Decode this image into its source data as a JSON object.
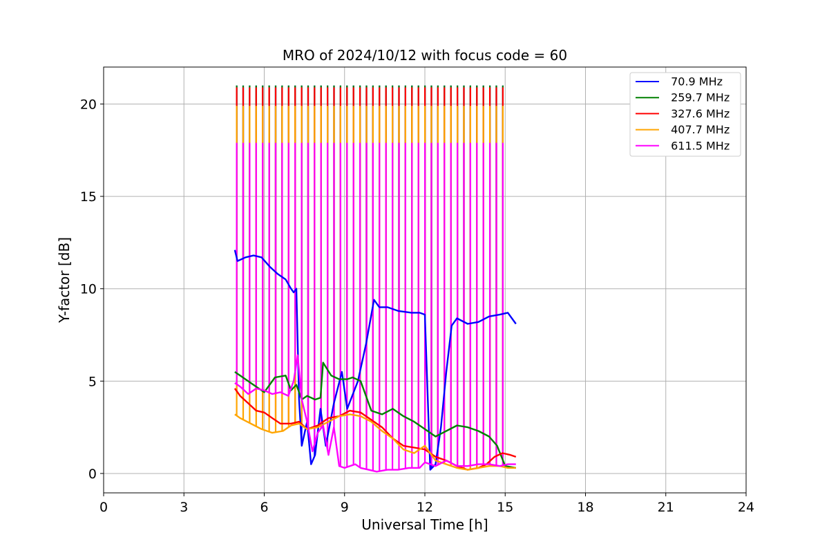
{
  "chart_data": {
    "type": "line",
    "title": "MRO of 2024/10/12 with focus code = 60",
    "xlabel": "Universal Time [h]",
    "ylabel": "Y-factor [dB]",
    "xlim": [
      0,
      24
    ],
    "ylim": [
      -1.05,
      22
    ],
    "xticks": [
      0,
      3,
      6,
      9,
      12,
      15,
      18,
      21,
      24
    ],
    "yticks": [
      0,
      5,
      10,
      15,
      20
    ],
    "grid": true,
    "legend_position": "top-right",
    "spikes": {
      "start": 4.97,
      "interval": 0.2425,
      "count": 42,
      "top_values": {
        "70.9 MHz": 21.0,
        "259.7 MHz": 21.0,
        "327.6 MHz": 20.9,
        "407.7 MHz": 19.9,
        "611.5 MHz": 17.9
      }
    },
    "series": [
      {
        "name": " 70.9 MHz",
        "color": "#0000ff",
        "x": [
          4.9,
          5.0,
          5.3,
          5.6,
          5.9,
          6.2,
          6.5,
          6.8,
          7.0,
          7.1,
          7.2,
          7.3,
          7.4,
          7.6,
          7.75,
          7.9,
          8.1,
          8.3,
          8.6,
          8.9,
          9.1,
          9.5,
          9.8,
          10.1,
          10.3,
          10.6,
          11.0,
          11.5,
          11.8,
          12.0,
          12.2,
          12.4,
          12.6,
          12.8,
          13.0,
          13.2,
          13.6,
          14.0,
          14.4,
          14.8,
          15.1,
          15.4
        ],
        "y": [
          12.1,
          11.5,
          11.7,
          11.8,
          11.7,
          11.2,
          10.8,
          10.5,
          10.0,
          9.8,
          10.0,
          4.0,
          1.5,
          2.8,
          0.5,
          1.0,
          3.5,
          1.5,
          3.8,
          5.5,
          3.5,
          5.0,
          7.0,
          9.4,
          9.0,
          9.0,
          8.8,
          8.7,
          8.7,
          8.6,
          0.2,
          0.5,
          2.5,
          5.5,
          8.0,
          8.4,
          8.1,
          8.2,
          8.5,
          8.6,
          8.7,
          8.1
        ]
      },
      {
        "name": " 259.7 MHz",
        "color": "#008000",
        "x": [
          4.9,
          5.2,
          5.6,
          6.0,
          6.4,
          6.8,
          7.0,
          7.2,
          7.4,
          7.6,
          7.9,
          8.1,
          8.2,
          8.5,
          8.8,
          9.1,
          9.3,
          9.6,
          10.0,
          10.4,
          10.8,
          11.2,
          11.6,
          12.0,
          12.4,
          12.8,
          13.2,
          13.6,
          14.0,
          14.4,
          14.7,
          15.0,
          15.4
        ],
        "y": [
          5.5,
          5.2,
          4.8,
          4.4,
          5.2,
          5.3,
          4.5,
          4.8,
          4.0,
          4.2,
          4.0,
          4.1,
          6.0,
          5.3,
          5.1,
          5.1,
          5.2,
          5.0,
          3.4,
          3.2,
          3.5,
          3.1,
          2.8,
          2.4,
          2.0,
          2.3,
          2.6,
          2.5,
          2.3,
          2.0,
          1.5,
          0.4,
          0.3
        ]
      },
      {
        "name": " 327.6 MHz",
        "color": "#ff0000",
        "x": [
          4.9,
          5.1,
          5.4,
          5.7,
          6.0,
          6.3,
          6.6,
          7.0,
          7.3,
          7.6,
          8.0,
          8.4,
          8.8,
          9.2,
          9.6,
          10.0,
          10.4,
          10.8,
          11.2,
          11.6,
          12.0,
          12.4,
          12.8,
          13.2,
          13.6,
          14.0,
          14.3,
          14.6,
          14.9,
          15.2,
          15.4
        ],
        "y": [
          4.6,
          4.2,
          3.8,
          3.4,
          3.3,
          3.0,
          2.7,
          2.7,
          2.8,
          2.4,
          2.6,
          3.0,
          3.1,
          3.4,
          3.3,
          2.9,
          2.5,
          1.9,
          1.5,
          1.4,
          1.3,
          0.9,
          0.7,
          0.4,
          0.2,
          0.3,
          0.5,
          0.9,
          1.1,
          1.0,
          0.9
        ]
      },
      {
        "name": " 407.7 MHz",
        "color": "#ffa500",
        "x": [
          4.9,
          5.1,
          5.5,
          5.9,
          6.3,
          6.7,
          7.0,
          7.3,
          7.6,
          8.0,
          8.4,
          8.8,
          9.2,
          9.6,
          10.0,
          10.4,
          10.8,
          11.2,
          11.6,
          12.0,
          12.4,
          12.8,
          13.2,
          13.6,
          14.0,
          14.4,
          14.8,
          15.1,
          15.4
        ],
        "y": [
          3.2,
          3.0,
          2.7,
          2.4,
          2.2,
          2.3,
          2.6,
          2.7,
          2.4,
          2.5,
          2.8,
          3.1,
          3.2,
          3.1,
          2.8,
          2.3,
          1.9,
          1.3,
          1.1,
          1.5,
          0.7,
          0.5,
          0.3,
          0.2,
          0.3,
          0.4,
          0.4,
          0.3,
          0.3
        ]
      },
      {
        "name": " 611.5 MHz",
        "color": "#ff00ff",
        "x": [
          4.9,
          5.1,
          5.4,
          5.7,
          6.0,
          6.3,
          6.6,
          6.9,
          7.1,
          7.25,
          7.4,
          7.6,
          7.8,
          8.0,
          8.2,
          8.4,
          8.6,
          8.8,
          9.0,
          9.2,
          9.4,
          9.6,
          9.9,
          10.2,
          10.6,
          11.0,
          11.4,
          11.8,
          12.0,
          12.4,
          12.8,
          13.2,
          13.6,
          14.0,
          14.4,
          14.8,
          15.1,
          15.4
        ],
        "y": [
          4.9,
          4.7,
          4.3,
          4.6,
          4.5,
          4.3,
          4.4,
          4.2,
          5.0,
          6.4,
          4.0,
          2.8,
          1.2,
          2.2,
          2.6,
          1.0,
          2.5,
          0.4,
          0.3,
          0.4,
          0.5,
          0.3,
          0.2,
          0.1,
          0.2,
          0.2,
          0.3,
          0.3,
          0.6,
          0.4,
          0.7,
          0.4,
          0.4,
          0.5,
          0.5,
          0.4,
          0.5,
          0.5
        ]
      }
    ]
  }
}
